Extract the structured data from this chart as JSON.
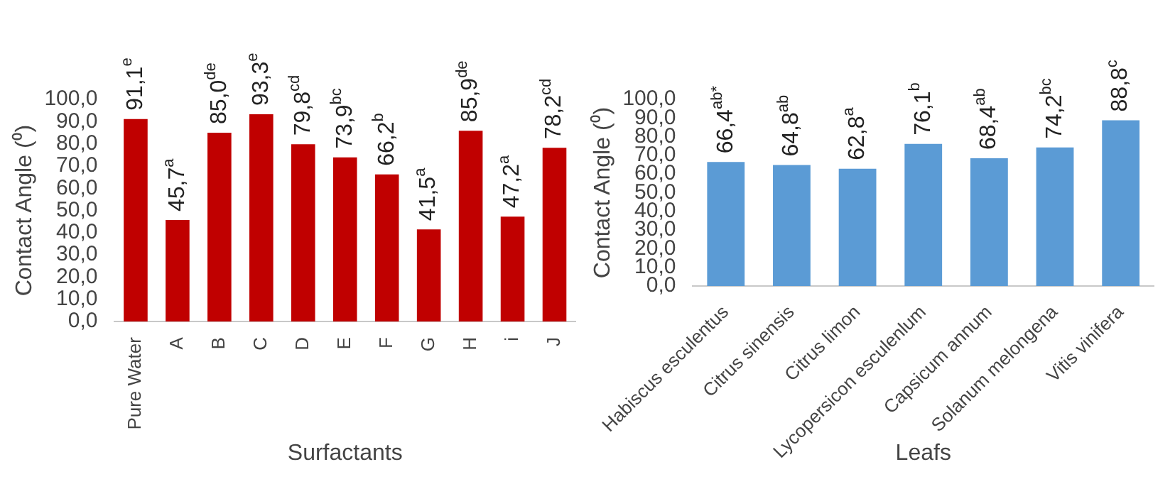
{
  "chart_data": [
    {
      "type": "bar",
      "xlabel": "Surfactants",
      "ylabel": "Contact Angle (⁰)",
      "categories": [
        "Pure Water",
        "A",
        "B",
        "C",
        "D",
        "E",
        "F",
        "G",
        "H",
        "i",
        "J"
      ],
      "values": [
        91.1,
        45.7,
        85.0,
        93.3,
        79.8,
        73.9,
        66.2,
        41.5,
        85.9,
        47.2,
        78.2
      ],
      "color": "#c00000",
      "value_labels": [
        "91,1$^{e}$",
        "45,7$^{a}$",
        "85,0$^{de}$",
        "93,3$^{e}$",
        "79,8$^{cd}$",
        "73,9$^{bc}$",
        "66,2$^{b}$",
        "41,5$^{a}$",
        "85,9$^{de}$",
        "47,2$^{a}$",
        "78,2$^{cd}$"
      ],
      "ylim": [
        0,
        100
      ],
      "yticks": [
        {
          "value": 0,
          "label": "0,0"
        },
        {
          "value": 10,
          "label": "10,0"
        },
        {
          "value": 20,
          "label": "20,0"
        },
        {
          "value": 30,
          "label": "30,0"
        },
        {
          "value": 40,
          "label": "40,0"
        },
        {
          "value": 50,
          "label": "50,0"
        },
        {
          "value": 60,
          "label": "60,0"
        },
        {
          "value": 70,
          "label": "70,0"
        },
        {
          "value": 80,
          "label": "80,0"
        },
        {
          "value": 90,
          "label": "90,0"
        },
        {
          "value": 100,
          "label": "100,0"
        }
      ],
      "grid": false
    },
    {
      "type": "bar",
      "xlabel": "Leafs",
      "ylabel": "Contact Angle (⁰)",
      "categories": [
        "Habiscus esculentus",
        "Citrus sinensis",
        "Citrus limon",
        "Lycopersicon esculenlum",
        "Capsicum annum",
        "Solanum melongena",
        "Vitis vinifera"
      ],
      "values": [
        66.4,
        64.8,
        62.8,
        76.1,
        68.4,
        74.2,
        88.8
      ],
      "color": "#5b9bd5",
      "value_labels": [
        "66,4$^{ab*}$",
        "64,8$^{ab}$",
        "62,8$^{a}$",
        "76,1$^{b}$",
        "68,4$^{ab}$",
        "74,2$^{bc}$",
        "88,8$^{c}$"
      ],
      "ylim": [
        0,
        100
      ],
      "yticks": [
        {
          "value": 0,
          "label": "0,0"
        },
        {
          "value": 10,
          "label": "10,0"
        },
        {
          "value": 20,
          "label": "20,0"
        },
        {
          "value": 30,
          "label": "30,0"
        },
        {
          "value": 40,
          "label": "40,0"
        },
        {
          "value": 50,
          "label": "50,0"
        },
        {
          "value": 60,
          "label": "60,0"
        },
        {
          "value": 70,
          "label": "70,0"
        },
        {
          "value": 80,
          "label": "80,0"
        },
        {
          "value": 90,
          "label": "90,0"
        },
        {
          "value": 100,
          "label": "100,0"
        }
      ],
      "grid": false
    }
  ]
}
